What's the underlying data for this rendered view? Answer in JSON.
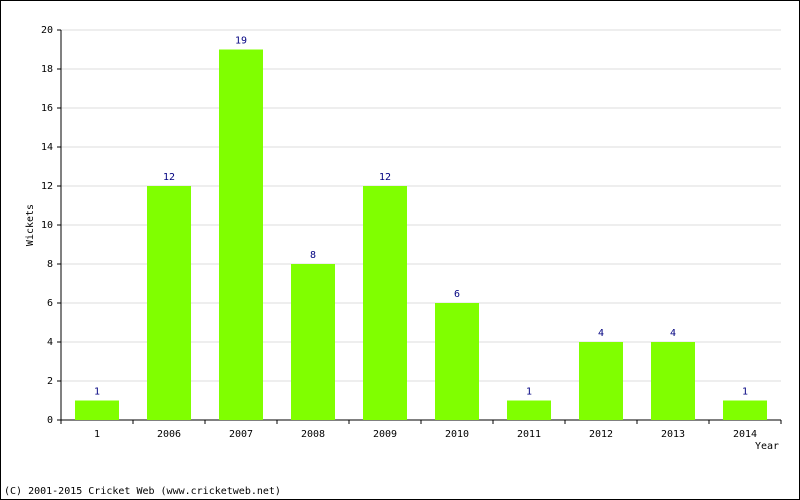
{
  "chart_data": {
    "type": "bar",
    "categories": [
      "1",
      "2006",
      "2007",
      "2008",
      "2009",
      "2010",
      "2011",
      "2012",
      "2013",
      "2014"
    ],
    "values": [
      1,
      12,
      19,
      8,
      12,
      6,
      1,
      4,
      4,
      1
    ],
    "color": "#80ff00",
    "y_label": "Wickets",
    "x_label": "Year",
    "footer": "(C) 2001-2015 Cricket Web (www.cricketweb.net)",
    "ylim": [
      0,
      20
    ],
    "yticks": [
      0,
      2,
      4,
      6,
      8,
      10,
      12,
      14,
      16,
      18,
      20
    ],
    "grid": true
  }
}
